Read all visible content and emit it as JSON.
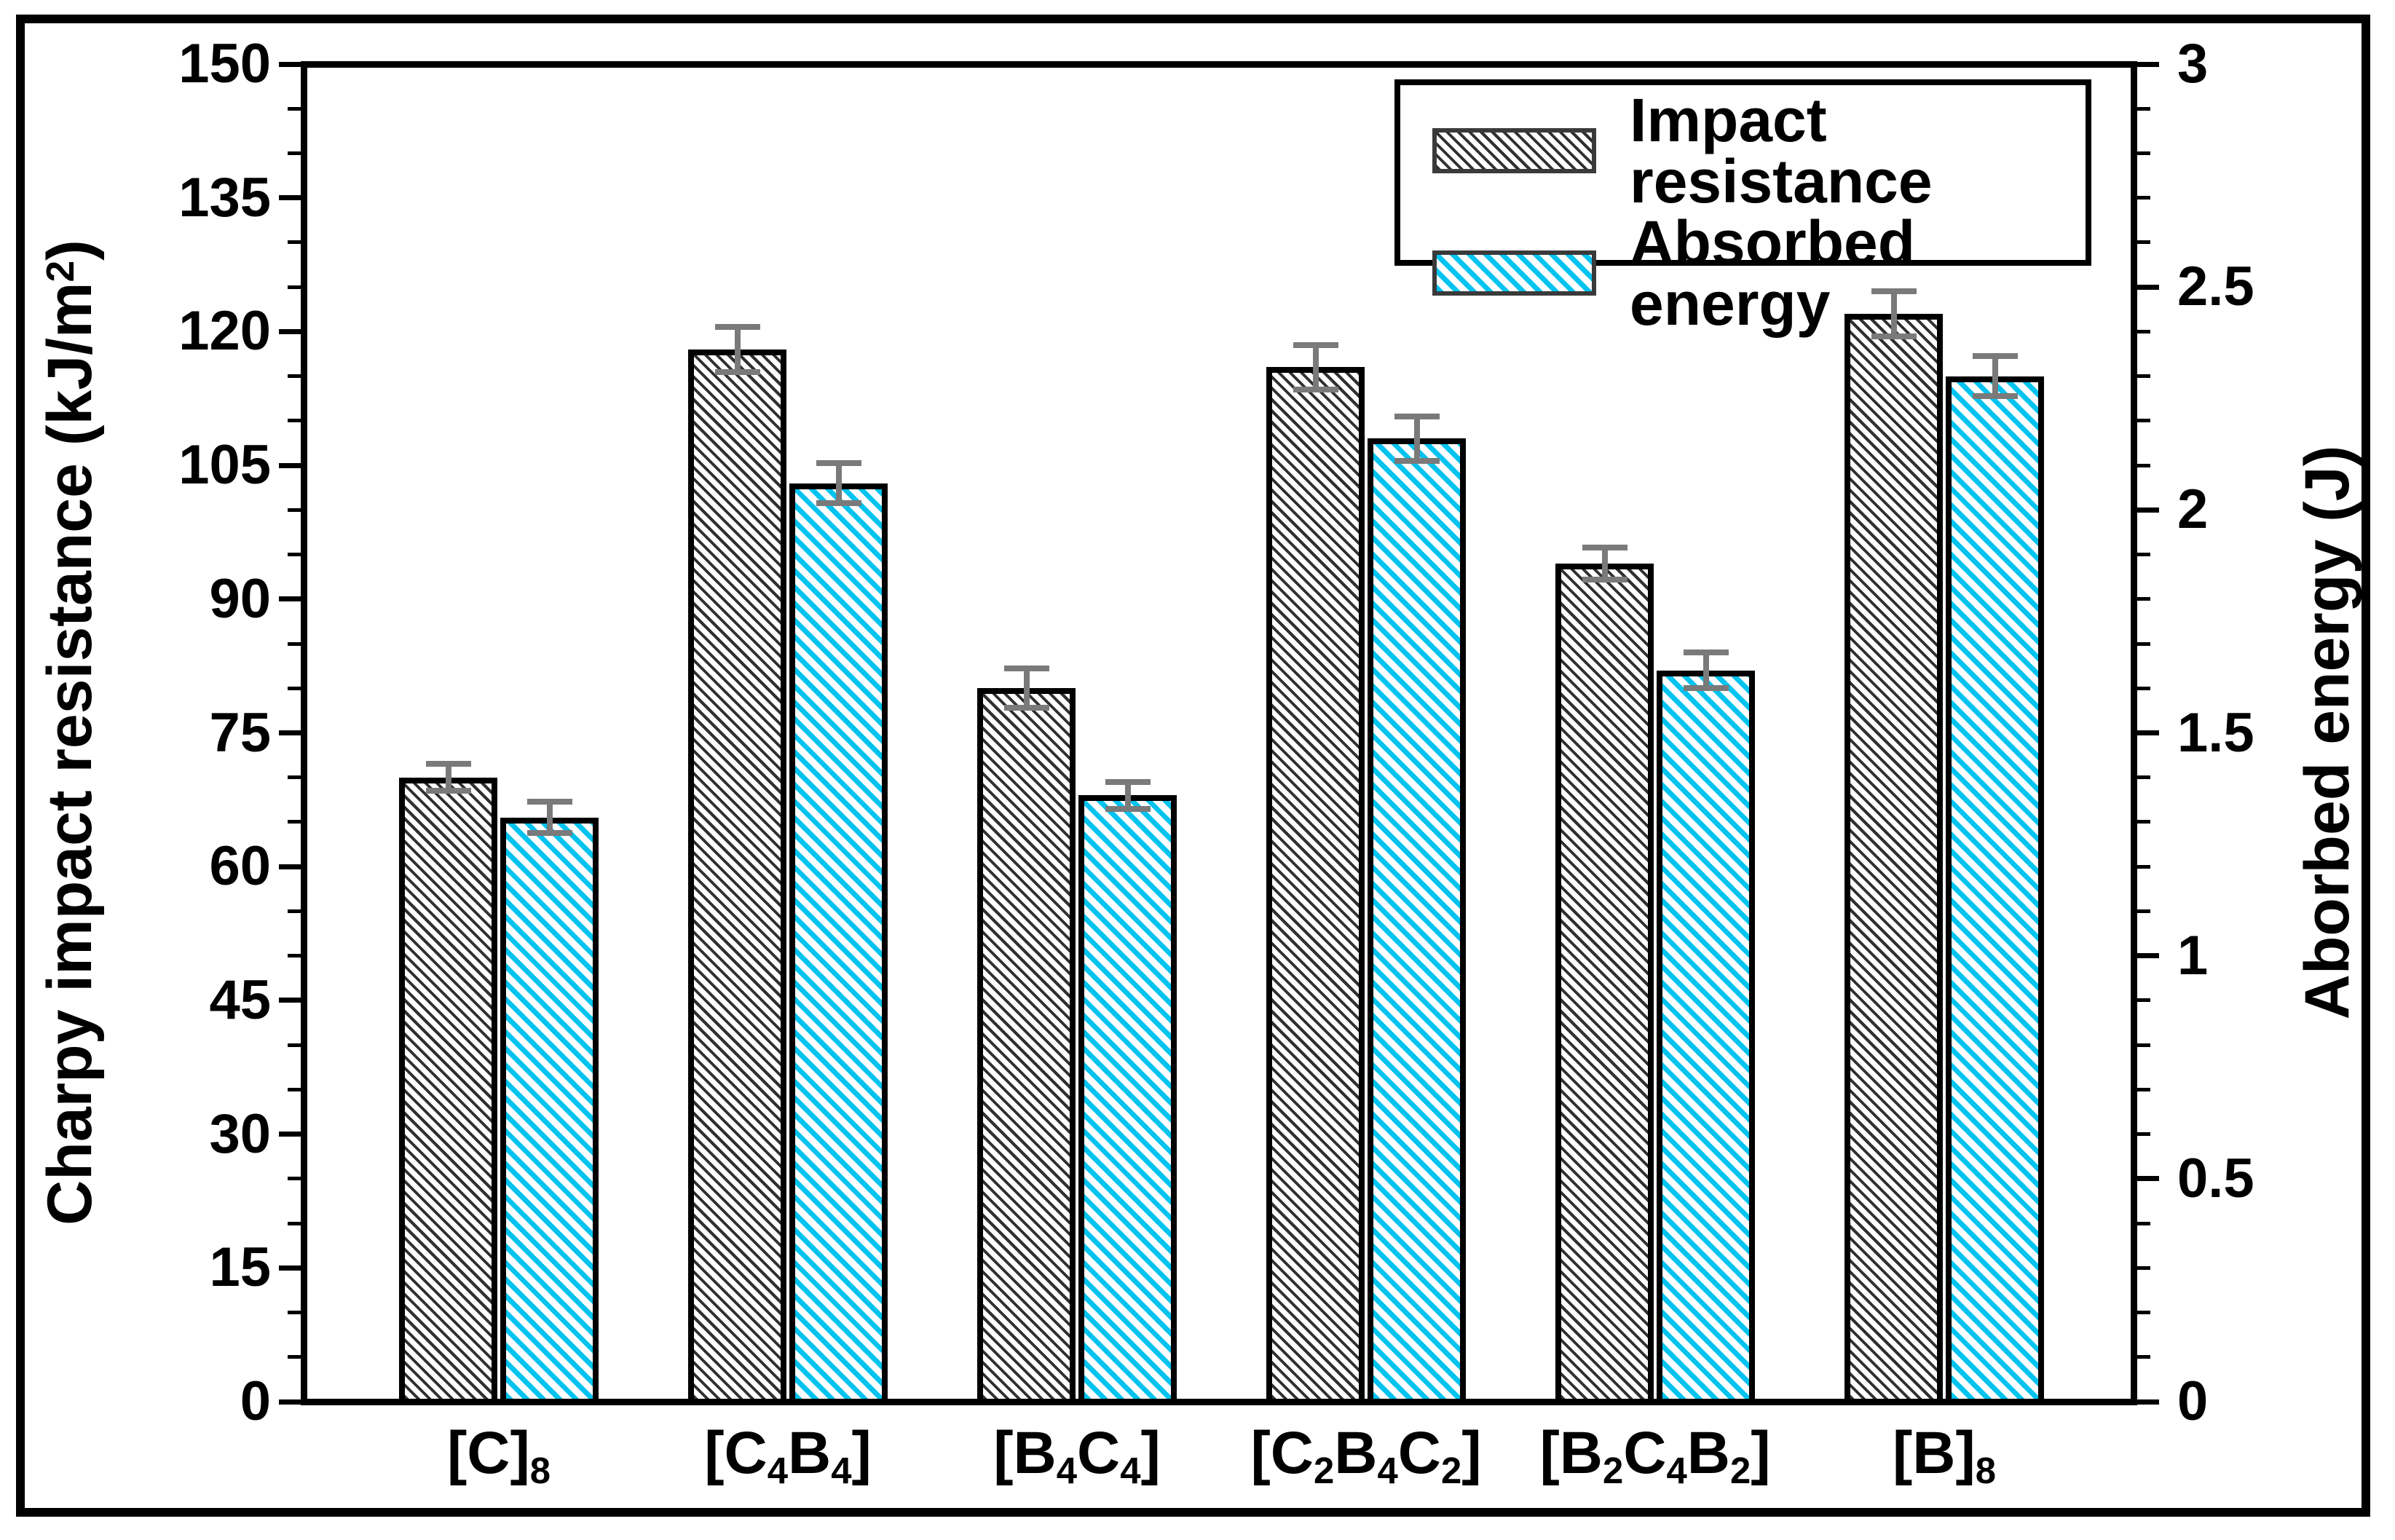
{
  "chart_data": {
    "type": "bar",
    "categories": [
      "[C]_8",
      "[C_4B_4]",
      "[B_4C_4]",
      "[C_2B_4C_2]",
      "[B_2C_4B_2]",
      "[B]_8"
    ],
    "series": [
      {
        "name": "Impact resistance",
        "axis": "left",
        "unit": "kJ/m^2",
        "values": [
          70,
          118,
          80,
          116,
          94,
          122
        ],
        "errors": [
          1.5,
          2.5,
          2.2,
          2.5,
          1.8,
          2.5
        ],
        "swatch": "gray-hatch"
      },
      {
        "name": "Absorbed energy",
        "axis": "right",
        "unit": "J",
        "values": [
          1.31,
          2.06,
          1.36,
          2.16,
          1.64,
          2.3
        ],
        "errors": [
          0.035,
          0.045,
          0.03,
          0.05,
          0.04,
          0.045
        ],
        "swatch": "cyan-hatch"
      }
    ],
    "ylabel_left": "Charpy impact resistance (kJ/m^2)",
    "ylabel_right": "Aborbed energy (J)",
    "yaxis_left": {
      "min": 0,
      "max": 150,
      "major_step": 15,
      "minor_step": 5,
      "tick_labels": [
        "0",
        "15",
        "30",
        "45",
        "60",
        "75",
        "90",
        "105",
        "120",
        "135",
        "150"
      ]
    },
    "yaxis_right": {
      "min": 0,
      "max": 3,
      "major_step": 0.5,
      "minor_step": 0.1,
      "tick_labels": [
        "0",
        "0.5",
        "1",
        "1.5",
        "2",
        "2.5",
        "3"
      ]
    },
    "legend": {
      "position": "top-right",
      "entries": [
        "Impact resistance",
        "Absorbed energy"
      ]
    },
    "grid": "off",
    "colors": {
      "impact_hatch": "#303030",
      "energy_hatch": "#00c3ef",
      "bar_outline": "#000000",
      "error_bar": "#7a7a7a",
      "frame": "#000000",
      "background": "#ffffff"
    }
  }
}
